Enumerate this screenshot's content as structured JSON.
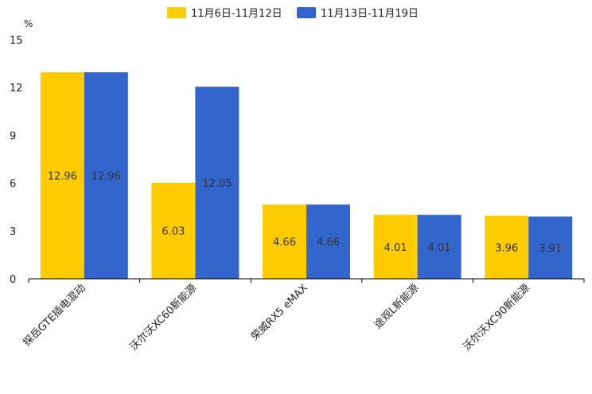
{
  "chart_data": {
    "type": "bar",
    "title": "",
    "xlabel": "",
    "ylabel": "%",
    "ylim": [
      0,
      15
    ],
    "yticks": [
      0,
      3,
      6,
      9,
      12,
      15
    ],
    "legend_position": "top-center",
    "categories": [
      "探岳GTE插电混动",
      "沃尔沃XC60新能源",
      "荣威RX5 eMAX",
      "途观L新能源",
      "沃尔沃XC90新能源"
    ],
    "series": [
      {
        "name": "11月6日-11月12日",
        "color": "#FFCC00",
        "values": [
          12.96,
          6.03,
          4.66,
          4.01,
          3.96
        ]
      },
      {
        "name": "11月13日-11月19日",
        "color": "#3366CC",
        "values": [
          12.96,
          12.05,
          4.66,
          4.01,
          3.91
        ]
      }
    ]
  }
}
